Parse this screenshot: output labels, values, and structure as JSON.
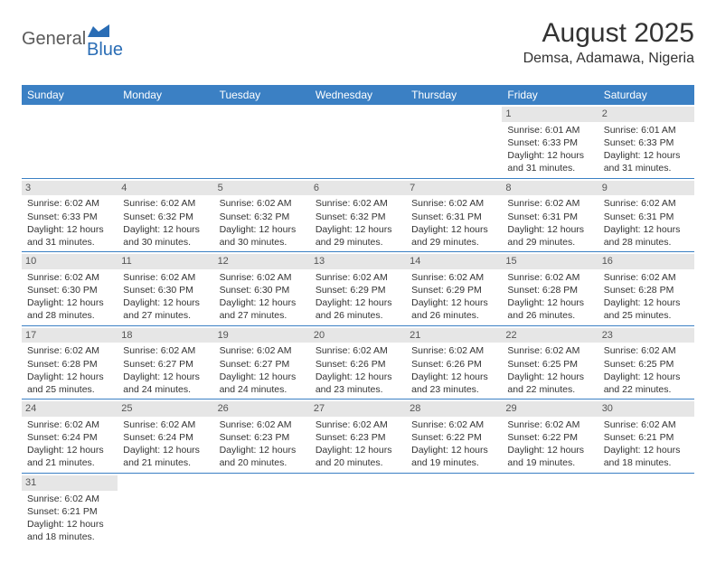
{
  "logo": {
    "general": "General",
    "blue": "Blue"
  },
  "title": "August 2025",
  "subtitle": "Demsa, Adamawa, Nigeria",
  "colors": {
    "header_bg": "#3b80c4",
    "header_fg": "#ffffff",
    "daynum_bg": "#e6e6e6",
    "border": "#3b80c4",
    "logo_gray": "#5a5a5a",
    "logo_blue": "#2a6db5"
  },
  "weekdays": [
    "Sunday",
    "Monday",
    "Tuesday",
    "Wednesday",
    "Thursday",
    "Friday",
    "Saturday"
  ],
  "weeks": [
    [
      null,
      null,
      null,
      null,
      null,
      {
        "d": "1",
        "sr": "Sunrise: 6:01 AM",
        "ss": "Sunset: 6:33 PM",
        "dl1": "Daylight: 12 hours",
        "dl2": "and 31 minutes."
      },
      {
        "d": "2",
        "sr": "Sunrise: 6:01 AM",
        "ss": "Sunset: 6:33 PM",
        "dl1": "Daylight: 12 hours",
        "dl2": "and 31 minutes."
      }
    ],
    [
      {
        "d": "3",
        "sr": "Sunrise: 6:02 AM",
        "ss": "Sunset: 6:33 PM",
        "dl1": "Daylight: 12 hours",
        "dl2": "and 31 minutes."
      },
      {
        "d": "4",
        "sr": "Sunrise: 6:02 AM",
        "ss": "Sunset: 6:32 PM",
        "dl1": "Daylight: 12 hours",
        "dl2": "and 30 minutes."
      },
      {
        "d": "5",
        "sr": "Sunrise: 6:02 AM",
        "ss": "Sunset: 6:32 PM",
        "dl1": "Daylight: 12 hours",
        "dl2": "and 30 minutes."
      },
      {
        "d": "6",
        "sr": "Sunrise: 6:02 AM",
        "ss": "Sunset: 6:32 PM",
        "dl1": "Daylight: 12 hours",
        "dl2": "and 29 minutes."
      },
      {
        "d": "7",
        "sr": "Sunrise: 6:02 AM",
        "ss": "Sunset: 6:31 PM",
        "dl1": "Daylight: 12 hours",
        "dl2": "and 29 minutes."
      },
      {
        "d": "8",
        "sr": "Sunrise: 6:02 AM",
        "ss": "Sunset: 6:31 PM",
        "dl1": "Daylight: 12 hours",
        "dl2": "and 29 minutes."
      },
      {
        "d": "9",
        "sr": "Sunrise: 6:02 AM",
        "ss": "Sunset: 6:31 PM",
        "dl1": "Daylight: 12 hours",
        "dl2": "and 28 minutes."
      }
    ],
    [
      {
        "d": "10",
        "sr": "Sunrise: 6:02 AM",
        "ss": "Sunset: 6:30 PM",
        "dl1": "Daylight: 12 hours",
        "dl2": "and 28 minutes."
      },
      {
        "d": "11",
        "sr": "Sunrise: 6:02 AM",
        "ss": "Sunset: 6:30 PM",
        "dl1": "Daylight: 12 hours",
        "dl2": "and 27 minutes."
      },
      {
        "d": "12",
        "sr": "Sunrise: 6:02 AM",
        "ss": "Sunset: 6:30 PM",
        "dl1": "Daylight: 12 hours",
        "dl2": "and 27 minutes."
      },
      {
        "d": "13",
        "sr": "Sunrise: 6:02 AM",
        "ss": "Sunset: 6:29 PM",
        "dl1": "Daylight: 12 hours",
        "dl2": "and 26 minutes."
      },
      {
        "d": "14",
        "sr": "Sunrise: 6:02 AM",
        "ss": "Sunset: 6:29 PM",
        "dl1": "Daylight: 12 hours",
        "dl2": "and 26 minutes."
      },
      {
        "d": "15",
        "sr": "Sunrise: 6:02 AM",
        "ss": "Sunset: 6:28 PM",
        "dl1": "Daylight: 12 hours",
        "dl2": "and 26 minutes."
      },
      {
        "d": "16",
        "sr": "Sunrise: 6:02 AM",
        "ss": "Sunset: 6:28 PM",
        "dl1": "Daylight: 12 hours",
        "dl2": "and 25 minutes."
      }
    ],
    [
      {
        "d": "17",
        "sr": "Sunrise: 6:02 AM",
        "ss": "Sunset: 6:28 PM",
        "dl1": "Daylight: 12 hours",
        "dl2": "and 25 minutes."
      },
      {
        "d": "18",
        "sr": "Sunrise: 6:02 AM",
        "ss": "Sunset: 6:27 PM",
        "dl1": "Daylight: 12 hours",
        "dl2": "and 24 minutes."
      },
      {
        "d": "19",
        "sr": "Sunrise: 6:02 AM",
        "ss": "Sunset: 6:27 PM",
        "dl1": "Daylight: 12 hours",
        "dl2": "and 24 minutes."
      },
      {
        "d": "20",
        "sr": "Sunrise: 6:02 AM",
        "ss": "Sunset: 6:26 PM",
        "dl1": "Daylight: 12 hours",
        "dl2": "and 23 minutes."
      },
      {
        "d": "21",
        "sr": "Sunrise: 6:02 AM",
        "ss": "Sunset: 6:26 PM",
        "dl1": "Daylight: 12 hours",
        "dl2": "and 23 minutes."
      },
      {
        "d": "22",
        "sr": "Sunrise: 6:02 AM",
        "ss": "Sunset: 6:25 PM",
        "dl1": "Daylight: 12 hours",
        "dl2": "and 22 minutes."
      },
      {
        "d": "23",
        "sr": "Sunrise: 6:02 AM",
        "ss": "Sunset: 6:25 PM",
        "dl1": "Daylight: 12 hours",
        "dl2": "and 22 minutes."
      }
    ],
    [
      {
        "d": "24",
        "sr": "Sunrise: 6:02 AM",
        "ss": "Sunset: 6:24 PM",
        "dl1": "Daylight: 12 hours",
        "dl2": "and 21 minutes."
      },
      {
        "d": "25",
        "sr": "Sunrise: 6:02 AM",
        "ss": "Sunset: 6:24 PM",
        "dl1": "Daylight: 12 hours",
        "dl2": "and 21 minutes."
      },
      {
        "d": "26",
        "sr": "Sunrise: 6:02 AM",
        "ss": "Sunset: 6:23 PM",
        "dl1": "Daylight: 12 hours",
        "dl2": "and 20 minutes."
      },
      {
        "d": "27",
        "sr": "Sunrise: 6:02 AM",
        "ss": "Sunset: 6:23 PM",
        "dl1": "Daylight: 12 hours",
        "dl2": "and 20 minutes."
      },
      {
        "d": "28",
        "sr": "Sunrise: 6:02 AM",
        "ss": "Sunset: 6:22 PM",
        "dl1": "Daylight: 12 hours",
        "dl2": "and 19 minutes."
      },
      {
        "d": "29",
        "sr": "Sunrise: 6:02 AM",
        "ss": "Sunset: 6:22 PM",
        "dl1": "Daylight: 12 hours",
        "dl2": "and 19 minutes."
      },
      {
        "d": "30",
        "sr": "Sunrise: 6:02 AM",
        "ss": "Sunset: 6:21 PM",
        "dl1": "Daylight: 12 hours",
        "dl2": "and 18 minutes."
      }
    ],
    [
      {
        "d": "31",
        "sr": "Sunrise: 6:02 AM",
        "ss": "Sunset: 6:21 PM",
        "dl1": "Daylight: 12 hours",
        "dl2": "and 18 minutes."
      },
      null,
      null,
      null,
      null,
      null,
      null
    ]
  ]
}
